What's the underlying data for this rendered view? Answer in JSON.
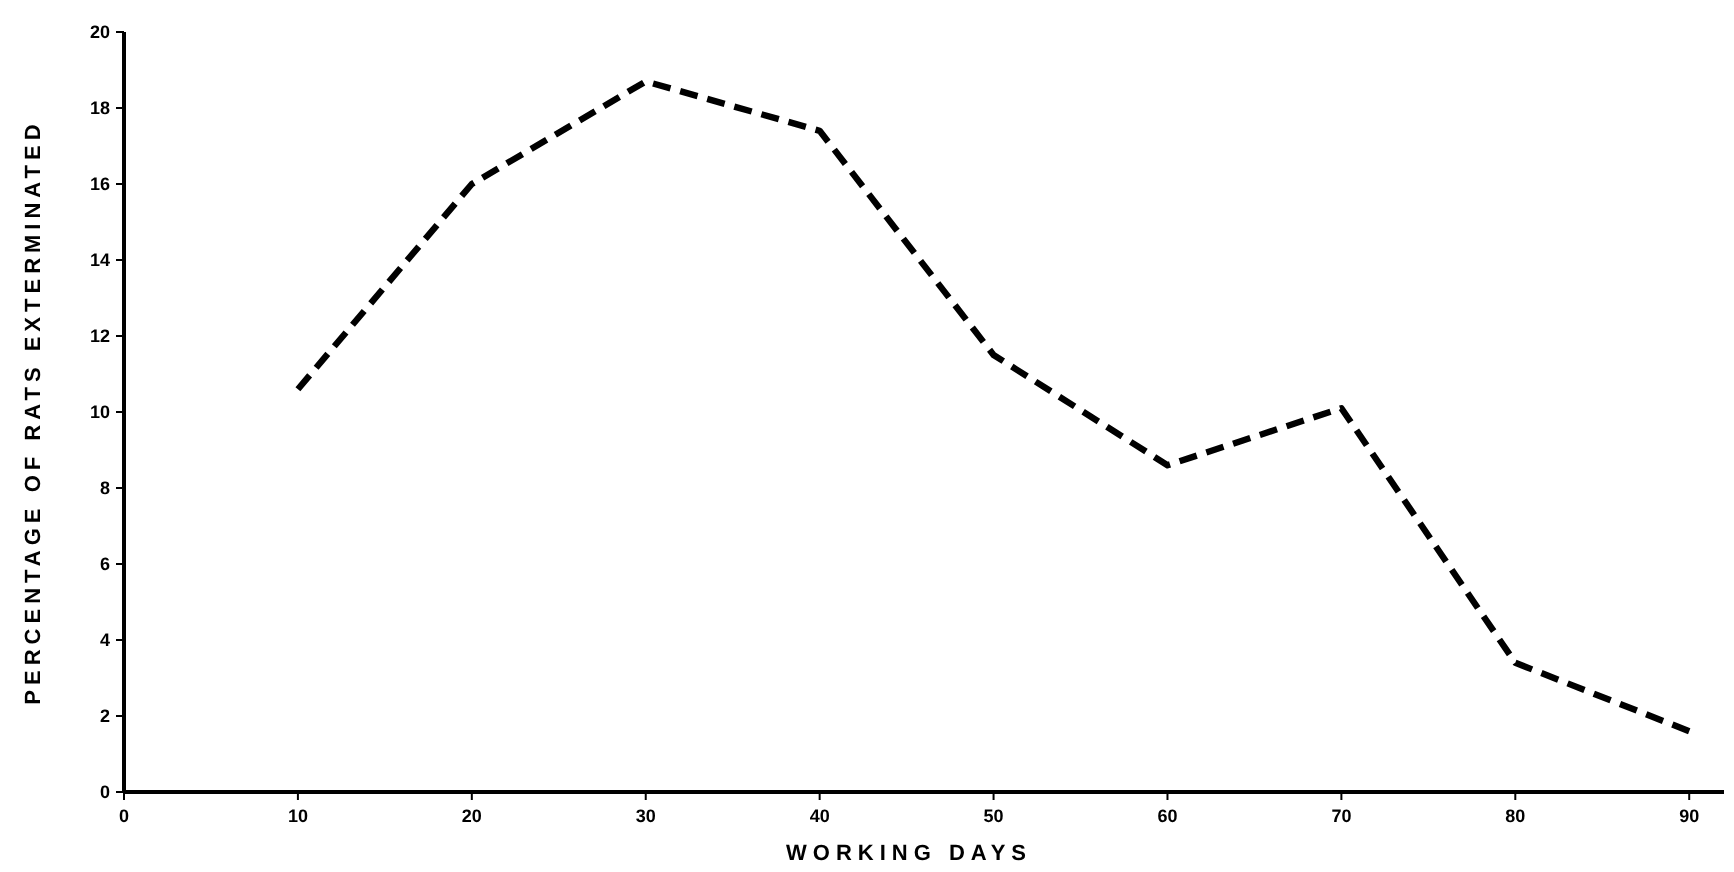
{
  "chart_data": {
    "type": "line",
    "xlabel": "WORKING DAYS",
    "ylabel": "PERCENTAGE OF RATS EXTERMINATED",
    "x": [
      10,
      20,
      30,
      40,
      50,
      60,
      70,
      80,
      90
    ],
    "series": [
      {
        "color": "#000000",
        "values": [
          10.6,
          16.0,
          18.7,
          17.4,
          11.5,
          8.6,
          10.1,
          3.4,
          1.6
        ]
      }
    ],
    "xlim": [
      0,
      92
    ],
    "xticks": [
      0,
      10,
      20,
      30,
      40,
      50,
      60,
      70,
      80,
      90
    ],
    "ylim": [
      0,
      20
    ],
    "yticks": [
      0,
      2,
      4,
      6,
      8,
      10,
      12,
      14,
      16,
      18,
      20
    ],
    "line_style": "dashed",
    "grid": false
  }
}
